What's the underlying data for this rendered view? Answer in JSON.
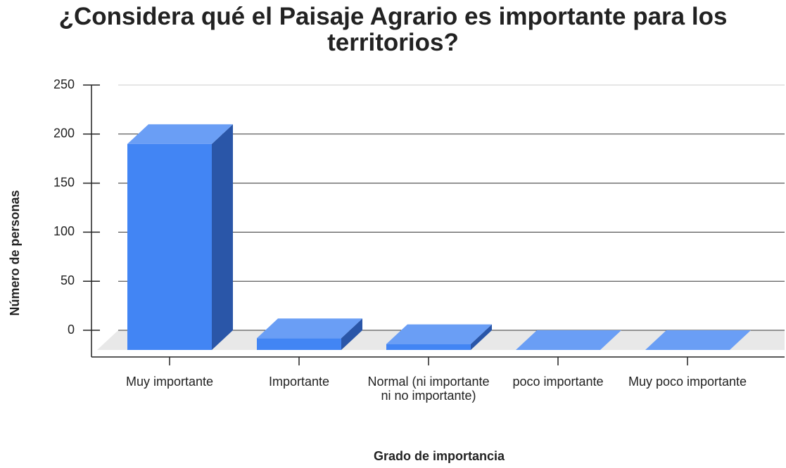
{
  "chart_data": {
    "type": "bar3d",
    "title": "¿Considera qué el Paisaje Agrario es importante para los territorios?",
    "x_label": "Grado de importancia",
    "y_label": "Número de personas",
    "categories": [
      "Muy importante",
      "Importante",
      "Normal (ni importante ni no importante)",
      "poco importante",
      "Muy poco importante"
    ],
    "values": [
      210,
      12,
      6,
      0,
      0
    ],
    "color": "#4285f4",
    "ylim": [
      0,
      250
    ],
    "yticks": [
      0,
      50,
      100,
      150,
      200,
      250
    ],
    "grid": true
  }
}
